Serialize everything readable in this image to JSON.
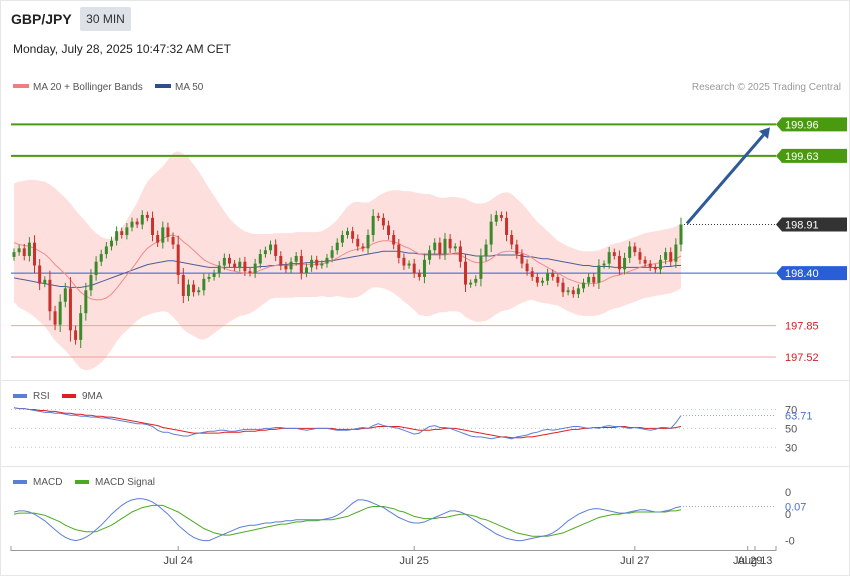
{
  "header": {
    "symbol": "GBP/JPY",
    "interval": "30 MIN",
    "datetime": "Monday, July 28, 2025 10:47:32 AM CET"
  },
  "legend": {
    "main": [
      {
        "label": "MA 20 + Bollinger Bands",
        "color": "#f47c7c"
      },
      {
        "label": "MA 50",
        "color": "#2f4e8c"
      }
    ],
    "rsi": [
      {
        "label": "RSI",
        "color": "#5b7fd6"
      },
      {
        "label": "9MA",
        "color": "#e02020"
      }
    ],
    "macd": [
      {
        "label": "MACD",
        "color": "#5b7fd6"
      },
      {
        "label": "MACD Signal",
        "color": "#4caa20"
      }
    ]
  },
  "credit": "Research © 2025 Trading Central",
  "colors": {
    "bull": "#3a8a2c",
    "bear": "#c8322c",
    "band_fill": "#fde0de",
    "resistance": "#4a9a10",
    "support": "#2a5ed8",
    "target_low": "#f0a0a0",
    "arrow": "#2f5a9a"
  },
  "chart_data": [
    {
      "type": "candlestick",
      "panel": "price",
      "ylim": [
        197.3,
        200.3
      ],
      "x_ticks": [
        "Jul 24",
        "Jul 25",
        "Jul 27",
        "Jul 29",
        "Aug 13"
      ],
      "levels": [
        {
          "value": 199.96,
          "label": "199.96",
          "kind": "resistance"
        },
        {
          "value": 199.63,
          "label": "199.63",
          "kind": "resistance"
        },
        {
          "value": 198.91,
          "label": "198.91",
          "kind": "last"
        },
        {
          "value": 198.4,
          "label": "198.40",
          "kind": "support"
        },
        {
          "value": 197.85,
          "label": "197.85",
          "kind": "target"
        },
        {
          "value": 197.52,
          "label": "197.52",
          "kind": "target"
        }
      ],
      "close": [
        198.62,
        198.66,
        198.58,
        198.72,
        198.48,
        198.29,
        198.33,
        198.0,
        197.86,
        198.1,
        198.24,
        197.8,
        197.7,
        197.98,
        198.22,
        198.38,
        198.52,
        198.6,
        198.68,
        198.74,
        198.84,
        198.8,
        198.88,
        198.94,
        198.91,
        199.01,
        198.98,
        198.8,
        198.72,
        198.88,
        198.78,
        198.7,
        198.38,
        198.16,
        198.28,
        198.2,
        198.22,
        198.34,
        198.36,
        198.4,
        198.48,
        198.56,
        198.5,
        198.46,
        198.52,
        198.42,
        198.4,
        198.5,
        198.6,
        198.64,
        198.7,
        198.58,
        198.48,
        198.44,
        198.52,
        198.58,
        198.4,
        198.46,
        198.54,
        198.48,
        198.5,
        198.56,
        198.64,
        198.72,
        198.8,
        198.84,
        198.76,
        198.68,
        198.66,
        198.8,
        199.0,
        198.98,
        198.9,
        198.8,
        198.7,
        198.56,
        198.48,
        198.5,
        198.4,
        198.36,
        198.54,
        198.64,
        198.72,
        198.6,
        198.76,
        198.66,
        198.68,
        198.52,
        198.28,
        198.3,
        198.34,
        198.58,
        198.7,
        198.94,
        199.01,
        198.98,
        198.8,
        198.7,
        198.6,
        198.5,
        198.42,
        198.36,
        198.3,
        198.32,
        198.4,
        198.36,
        198.3,
        198.2,
        198.22,
        198.18,
        198.24,
        198.3,
        198.36,
        198.3,
        198.48,
        198.5,
        198.62,
        198.58,
        198.44,
        198.56,
        198.68,
        198.62,
        198.54,
        198.5,
        198.46,
        198.44,
        198.54,
        198.62,
        198.52,
        198.7,
        198.91
      ],
      "ma20": [
        198.72,
        198.7,
        198.69,
        198.68,
        198.66,
        198.63,
        198.6,
        198.55,
        198.49,
        198.44,
        198.39,
        198.33,
        198.26,
        198.2,
        198.16,
        198.13,
        198.12,
        198.12,
        198.14,
        198.18,
        198.24,
        198.31,
        198.38,
        198.45,
        198.52,
        198.6,
        198.66,
        198.7,
        198.73,
        198.76,
        198.79,
        198.8,
        198.78,
        198.73,
        198.69,
        198.64,
        198.59,
        198.54,
        198.51,
        198.49,
        198.47,
        198.45,
        198.43,
        198.42,
        198.41,
        198.4,
        198.4,
        198.41,
        198.43,
        198.45,
        198.47,
        198.48,
        198.48,
        198.48,
        198.48,
        198.49,
        198.49,
        198.49,
        198.49,
        198.49,
        198.5,
        198.51,
        198.53,
        198.56,
        198.59,
        198.62,
        198.64,
        198.65,
        198.66,
        198.68,
        198.71,
        198.73,
        198.74,
        198.74,
        198.73,
        198.71,
        198.68,
        198.66,
        198.63,
        198.6,
        198.59,
        198.59,
        198.59,
        198.59,
        198.59,
        198.6,
        198.6,
        198.59,
        198.56,
        198.53,
        198.51,
        198.51,
        198.52,
        198.55,
        198.59,
        198.62,
        198.63,
        198.63,
        198.62,
        198.61,
        198.59,
        198.56,
        198.52,
        198.49,
        198.46,
        198.43,
        198.4,
        198.37,
        198.34,
        198.32,
        198.3,
        198.29,
        198.29,
        198.29,
        198.3,
        198.32,
        198.35,
        198.37,
        198.38,
        198.4,
        198.42,
        198.44,
        198.46,
        198.48,
        198.49,
        198.5,
        198.51,
        198.52,
        198.53,
        198.55,
        198.58
      ],
      "ma50": [
        198.35,
        198.34,
        198.33,
        198.32,
        198.31,
        198.3,
        198.29,
        198.28,
        198.27,
        198.26,
        198.26,
        198.25,
        198.25,
        198.25,
        198.26,
        198.27,
        198.29,
        198.31,
        198.33,
        198.35,
        198.37,
        198.39,
        198.41,
        198.43,
        198.45,
        198.47,
        198.49,
        198.5,
        198.51,
        198.52,
        198.53,
        198.53,
        198.52,
        198.51,
        198.5,
        198.49,
        198.48,
        198.47,
        198.46,
        198.46,
        198.46,
        198.46,
        198.46,
        198.46,
        198.46,
        198.46,
        198.46,
        198.46,
        198.47,
        198.47,
        198.48,
        198.48,
        198.49,
        198.49,
        198.5,
        198.5,
        198.5,
        198.51,
        198.51,
        198.52,
        198.52,
        198.53,
        198.53,
        198.54,
        198.55,
        198.56,
        198.57,
        198.58,
        198.59,
        198.6,
        198.61,
        198.62,
        198.63,
        198.63,
        198.63,
        198.63,
        198.62,
        198.61,
        198.61,
        198.6,
        198.6,
        198.6,
        198.6,
        198.6,
        198.6,
        198.6,
        198.61,
        198.61,
        198.6,
        198.59,
        198.58,
        198.58,
        198.58,
        198.58,
        198.59,
        198.59,
        198.59,
        198.59,
        198.59,
        198.58,
        198.57,
        198.57,
        198.56,
        198.55,
        198.55,
        198.54,
        198.53,
        198.52,
        198.51,
        198.5,
        198.49,
        198.48,
        198.48,
        198.47,
        198.47,
        198.47,
        198.47,
        198.46,
        198.46,
        198.46,
        198.46,
        198.46,
        198.46,
        198.46,
        198.46,
        198.46,
        198.46,
        198.47,
        198.47,
        198.48,
        198.48
      ],
      "band_width": [
        0.62,
        0.66,
        0.68,
        0.7,
        0.72,
        0.74,
        0.76,
        0.78,
        0.8,
        0.8,
        0.8,
        0.8,
        0.8,
        0.8,
        0.78,
        0.74,
        0.7,
        0.66,
        0.62,
        0.58,
        0.56,
        0.56,
        0.58,
        0.6,
        0.62,
        0.66,
        0.7,
        0.72,
        0.74,
        0.76,
        0.8,
        0.86,
        0.9,
        0.92,
        0.92,
        0.9,
        0.88,
        0.84,
        0.78,
        0.72,
        0.66,
        0.6,
        0.54,
        0.5,
        0.46,
        0.44,
        0.42,
        0.4,
        0.38,
        0.36,
        0.34,
        0.34,
        0.34,
        0.34,
        0.34,
        0.34,
        0.34,
        0.34,
        0.34,
        0.34,
        0.34,
        0.36,
        0.38,
        0.4,
        0.44,
        0.48,
        0.5,
        0.5,
        0.48,
        0.46,
        0.46,
        0.48,
        0.5,
        0.52,
        0.54,
        0.56,
        0.58,
        0.6,
        0.62,
        0.64,
        0.64,
        0.64,
        0.62,
        0.6,
        0.6,
        0.6,
        0.6,
        0.6,
        0.62,
        0.62,
        0.62,
        0.62,
        0.62,
        0.62,
        0.62,
        0.62,
        0.62,
        0.6,
        0.56,
        0.52,
        0.48,
        0.44,
        0.42,
        0.4,
        0.38,
        0.36,
        0.34,
        0.34,
        0.34,
        0.34,
        0.34,
        0.34,
        0.34,
        0.34,
        0.34,
        0.34,
        0.34,
        0.34,
        0.34,
        0.34,
        0.34,
        0.34,
        0.34,
        0.34,
        0.34,
        0.34,
        0.34,
        0.34,
        0.34,
        0.34,
        0.34
      ],
      "projection": {
        "from": 198.91,
        "to": 199.96
      }
    },
    {
      "type": "line",
      "panel": "rsi",
      "ylim": [
        25,
        78
      ],
      "y_ticks": [
        "70",
        "50",
        "30"
      ],
      "last_value_label": "63.71",
      "series": [
        {
          "name": "RSI",
          "values": [
            72,
            71,
            71,
            70,
            69,
            68,
            67,
            67,
            66,
            66,
            65,
            64,
            64,
            63,
            63,
            62,
            62,
            61,
            61,
            60,
            59,
            58,
            57,
            56,
            55,
            55,
            54,
            52,
            48,
            46,
            46,
            44,
            43,
            42,
            42,
            44,
            45,
            46,
            47,
            47,
            48,
            48,
            47,
            47,
            48,
            49,
            49,
            49,
            49,
            50,
            50,
            51,
            51,
            50,
            50,
            50,
            49,
            48,
            49,
            50,
            50,
            50,
            49,
            48,
            48,
            48,
            49,
            50,
            51,
            50,
            53,
            55,
            53,
            52,
            51,
            50,
            48,
            46,
            44,
            45,
            49,
            52,
            53,
            51,
            51,
            50,
            48,
            46,
            44,
            42,
            41,
            41,
            40,
            39,
            40,
            41,
            40,
            39,
            41,
            42,
            43,
            45,
            46,
            48,
            49,
            48,
            49,
            50,
            51,
            52,
            52,
            51,
            50,
            51,
            50,
            52,
            53,
            52,
            52,
            51,
            50,
            51,
            50,
            49,
            48,
            49,
            51,
            51,
            50,
            56,
            63.71
          ]
        },
        {
          "name": "9MA",
          "values": [
            72,
            71,
            71,
            70,
            70,
            69,
            69,
            68,
            68,
            67,
            66,
            66,
            65,
            65,
            64,
            64,
            63,
            63,
            62,
            62,
            61,
            60,
            59,
            58,
            57,
            56,
            55,
            54,
            53,
            51,
            50,
            49,
            48,
            47,
            46,
            45,
            45,
            45,
            45,
            45,
            45,
            46,
            46,
            46,
            46,
            47,
            47,
            47,
            48,
            48,
            49,
            49,
            50,
            50,
            50,
            50,
            50,
            50,
            50,
            50,
            50,
            50,
            50,
            49,
            49,
            49,
            49,
            49,
            50,
            50,
            51,
            52,
            52,
            52,
            52,
            52,
            51,
            50,
            49,
            48,
            48,
            48,
            49,
            49,
            50,
            50,
            50,
            49,
            48,
            47,
            46,
            45,
            44,
            43,
            42,
            41,
            41,
            40,
            40,
            40,
            41,
            41,
            42,
            43,
            44,
            45,
            46,
            47,
            48,
            49,
            49,
            50,
            50,
            51,
            51,
            51,
            51,
            51,
            52,
            52,
            51,
            51,
            51,
            50,
            50,
            50,
            50,
            50,
            50,
            51,
            52
          ]
        }
      ]
    },
    {
      "type": "line",
      "panel": "macd",
      "ylim": [
        -0.28,
        0.22
      ],
      "y_ticks": [
        "0",
        "-0"
      ],
      "last_value_label": "0.07",
      "series": [
        {
          "name": "MACD",
          "values": [
            0.02,
            0.03,
            0.03,
            0.02,
            0.0,
            -0.03,
            -0.06,
            -0.1,
            -0.14,
            -0.18,
            -0.21,
            -0.23,
            -0.24,
            -0.23,
            -0.21,
            -0.18,
            -0.14,
            -0.1,
            -0.05,
            0.0,
            0.04,
            0.08,
            0.11,
            0.13,
            0.14,
            0.14,
            0.13,
            0.11,
            0.08,
            0.04,
            0.0,
            -0.05,
            -0.1,
            -0.14,
            -0.18,
            -0.21,
            -0.23,
            -0.24,
            -0.24,
            -0.22,
            -0.2,
            -0.18,
            -0.16,
            -0.14,
            -0.12,
            -0.11,
            -0.1,
            -0.1,
            -0.09,
            -0.08,
            -0.08,
            -0.07,
            -0.07,
            -0.06,
            -0.06,
            -0.05,
            -0.05,
            -0.05,
            -0.05,
            -0.05,
            -0.05,
            -0.04,
            -0.03,
            -0.01,
            0.02,
            0.06,
            0.1,
            0.13,
            0.13,
            0.12,
            0.1,
            0.08,
            0.06,
            0.03,
            0.0,
            -0.03,
            -0.05,
            -0.07,
            -0.08,
            -0.08,
            -0.07,
            -0.05,
            -0.03,
            -0.01,
            0.01,
            0.03,
            0.03,
            0.02,
            0.0,
            -0.03,
            -0.06,
            -0.09,
            -0.12,
            -0.15,
            -0.18,
            -0.2,
            -0.22,
            -0.23,
            -0.24,
            -0.24,
            -0.23,
            -0.22,
            -0.21,
            -0.2,
            -0.19,
            -0.17,
            -0.14,
            -0.1,
            -0.06,
            -0.03,
            0.0,
            0.02,
            0.04,
            0.05,
            0.05,
            0.04,
            0.03,
            0.02,
            0.01,
            0.01,
            0.02,
            0.03,
            0.04,
            0.04,
            0.03,
            0.02,
            0.02,
            0.03,
            0.04,
            0.06,
            0.07
          ]
        },
        {
          "name": "MACD Signal",
          "values": [
            0.0,
            0.01,
            0.01,
            0.01,
            0.01,
            0.0,
            -0.01,
            -0.03,
            -0.05,
            -0.07,
            -0.1,
            -0.12,
            -0.14,
            -0.15,
            -0.16,
            -0.16,
            -0.16,
            -0.14,
            -0.12,
            -0.1,
            -0.07,
            -0.04,
            -0.01,
            0.02,
            0.04,
            0.06,
            0.07,
            0.08,
            0.08,
            0.08,
            0.06,
            0.04,
            0.02,
            -0.01,
            -0.04,
            -0.07,
            -0.1,
            -0.13,
            -0.15,
            -0.17,
            -0.18,
            -0.19,
            -0.19,
            -0.18,
            -0.17,
            -0.16,
            -0.15,
            -0.14,
            -0.13,
            -0.12,
            -0.11,
            -0.1,
            -0.09,
            -0.09,
            -0.08,
            -0.07,
            -0.07,
            -0.06,
            -0.06,
            -0.06,
            -0.05,
            -0.05,
            -0.05,
            -0.04,
            -0.03,
            -0.02,
            0.0,
            0.02,
            0.04,
            0.06,
            0.07,
            0.07,
            0.07,
            0.06,
            0.05,
            0.03,
            0.02,
            0.0,
            -0.02,
            -0.03,
            -0.04,
            -0.04,
            -0.04,
            -0.03,
            -0.03,
            -0.02,
            -0.01,
            0.0,
            0.0,
            -0.01,
            -0.02,
            -0.04,
            -0.05,
            -0.07,
            -0.09,
            -0.11,
            -0.13,
            -0.15,
            -0.17,
            -0.18,
            -0.19,
            -0.2,
            -0.2,
            -0.2,
            -0.2,
            -0.19,
            -0.18,
            -0.17,
            -0.15,
            -0.13,
            -0.11,
            -0.09,
            -0.07,
            -0.05,
            -0.03,
            -0.02,
            -0.01,
            0.0,
            0.0,
            0.01,
            0.01,
            0.02,
            0.02,
            0.02,
            0.02,
            0.02,
            0.02,
            0.02,
            0.03,
            0.03,
            0.04
          ]
        }
      ]
    }
  ]
}
